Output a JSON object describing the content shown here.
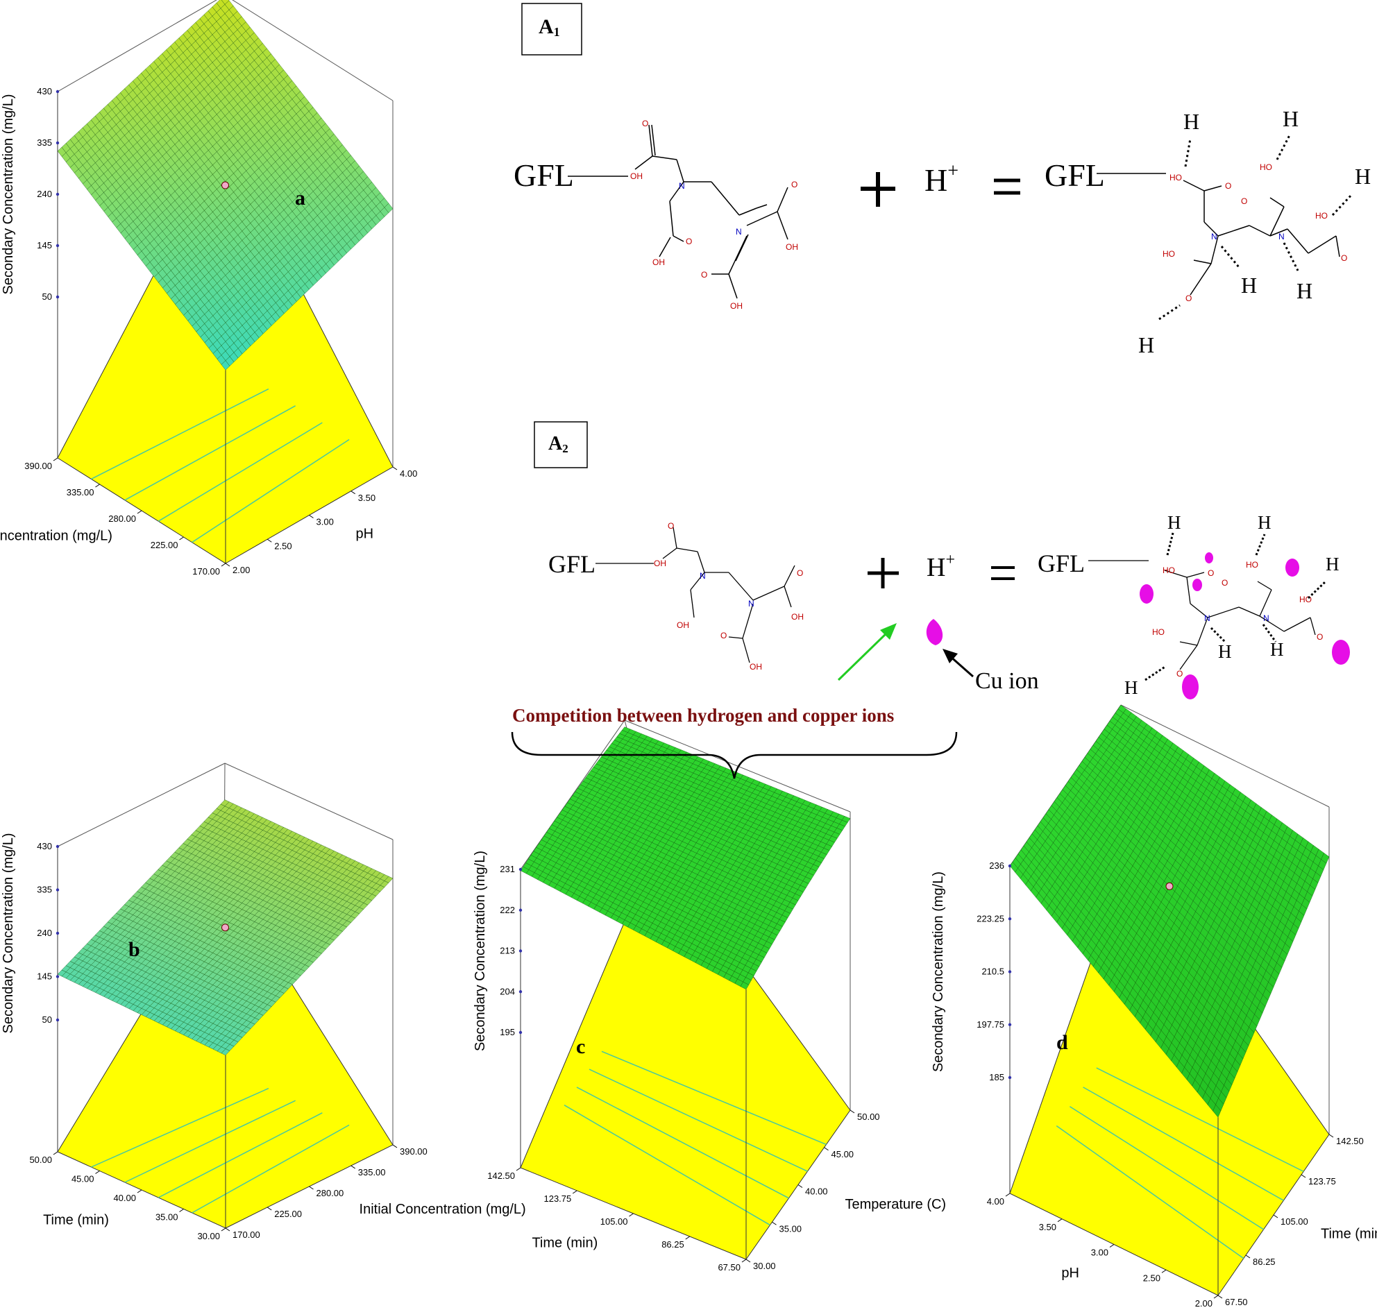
{
  "scheme": {
    "label_a1": "A",
    "label_a1_sub": "1",
    "label_a2": "A",
    "label_a2_sub": "2",
    "gfl": "GFL",
    "h": "H",
    "hplus": "H",
    "plus_sup": "+",
    "cu_label": "Cu ion",
    "competition_text": "Competition between hydrogen and copper ions",
    "atom_o": "O",
    "atom_oh": "OH",
    "atom_ho": "HO",
    "atom_n": "N",
    "colors": {
      "cu": "#e60ee6",
      "arrow_green": "#22cc22",
      "competition": "#7a1010"
    }
  },
  "chart_data": [
    {
      "id": "a",
      "type": "surface",
      "panel_label": "a",
      "zlabel": "Secondary Concentration (mg/L)",
      "xlabel": "pH",
      "ylabel": "Initial Concentration (mg/L)",
      "x_ticks": [
        "2.00",
        "2.50",
        "3.00",
        "3.50",
        "4.00"
      ],
      "y_ticks": [
        "170.00",
        "225.00",
        "280.00",
        "335.00",
        "390.00"
      ],
      "z_ticks": [
        "50",
        "145",
        "240",
        "335",
        "430"
      ],
      "xlim": [
        2,
        4
      ],
      "ylim": [
        170,
        390
      ],
      "zlim": [
        50,
        430
      ],
      "corner_values": {
        "x2_y170": 110,
        "x4_y170": 230,
        "x2_y390": 320,
        "x4_y390": 430
      },
      "design_point": {
        "x": 3.0,
        "y": 280,
        "z": 265
      },
      "surface_color": "green-to-cyan",
      "floor_color": "#ffff00",
      "grid": true
    },
    {
      "id": "b",
      "type": "surface",
      "panel_label": "b",
      "zlabel": "Secondary Concentration (mg/L)",
      "xlabel": "Initial Concentration (mg/L)",
      "ylabel": "Time (min)",
      "x_ticks": [
        "170.00",
        "225.00",
        "280.00",
        "335.00",
        "390.00"
      ],
      "y_ticks": [
        "30.00",
        "35.00",
        "40.00",
        "45.00",
        "50.00"
      ],
      "z_ticks": [
        "50",
        "145",
        "240",
        "335",
        "430"
      ],
      "xlim": [
        170,
        390
      ],
      "ylim": [
        30,
        50
      ],
      "zlim": [
        50,
        430
      ],
      "corner_values": {
        "x170_y30": 140,
        "x390_y30": 345,
        "x170_y50": 150,
        "x390_y50": 350
      },
      "design_point": {
        "x": 280,
        "y": 40,
        "z": 245
      },
      "surface_color": "cyan-to-green",
      "floor_color": "#ffff00",
      "grid": true
    },
    {
      "id": "c",
      "type": "surface",
      "panel_label": "c",
      "zlabel": "Secondary Concentration (mg/L)",
      "xlabel": "Temperature (C)",
      "ylabel": "Time (min)",
      "x_ticks": [
        "30.00",
        "35.00",
        "40.00",
        "45.00",
        "50.00"
      ],
      "y_ticks": [
        "67.50",
        "86.25",
        "105.00",
        "123.75",
        "142.50"
      ],
      "z_ticks": [
        "195",
        "204",
        "213",
        "222",
        "231"
      ],
      "xlim": [
        30,
        50
      ],
      "ylim": [
        67.5,
        142.5
      ],
      "zlim": [
        195,
        231
      ],
      "corner_values": {
        "x30_y67.5": 225,
        "x50_y67.5": 231,
        "x30_y142.5": 231,
        "x50_y142.5": 229
      },
      "surface_color": "green",
      "floor_color": "#ffff00",
      "grid": true
    },
    {
      "id": "d",
      "type": "surface",
      "panel_label": "d",
      "zlabel": "Secondary Concentration (mg/L)",
      "xlabel": "Time (min)",
      "ylabel": "pH",
      "x_ticks": [
        "67.50",
        "86.25",
        "105.00",
        "123.75",
        "142.50"
      ],
      "y_ticks": [
        "2.00",
        "2.50",
        "3.00",
        "3.50",
        "4.00"
      ],
      "z_ticks": [
        "185",
        "197.75",
        "210.5",
        "223.25",
        "236"
      ],
      "xlim": [
        67.5,
        142.5
      ],
      "ylim": [
        2,
        4
      ],
      "zlim": [
        185,
        236
      ],
      "corner_values": {
        "x67.5_y2": 200,
        "x142.5_y2": 226,
        "x67.5_y4": 236,
        "x142.5_y4": 236
      },
      "design_point": {
        "x": 105,
        "y": 3,
        "z": 236
      },
      "surface_color": "green",
      "floor_color": "#ffff00",
      "grid": true
    }
  ]
}
